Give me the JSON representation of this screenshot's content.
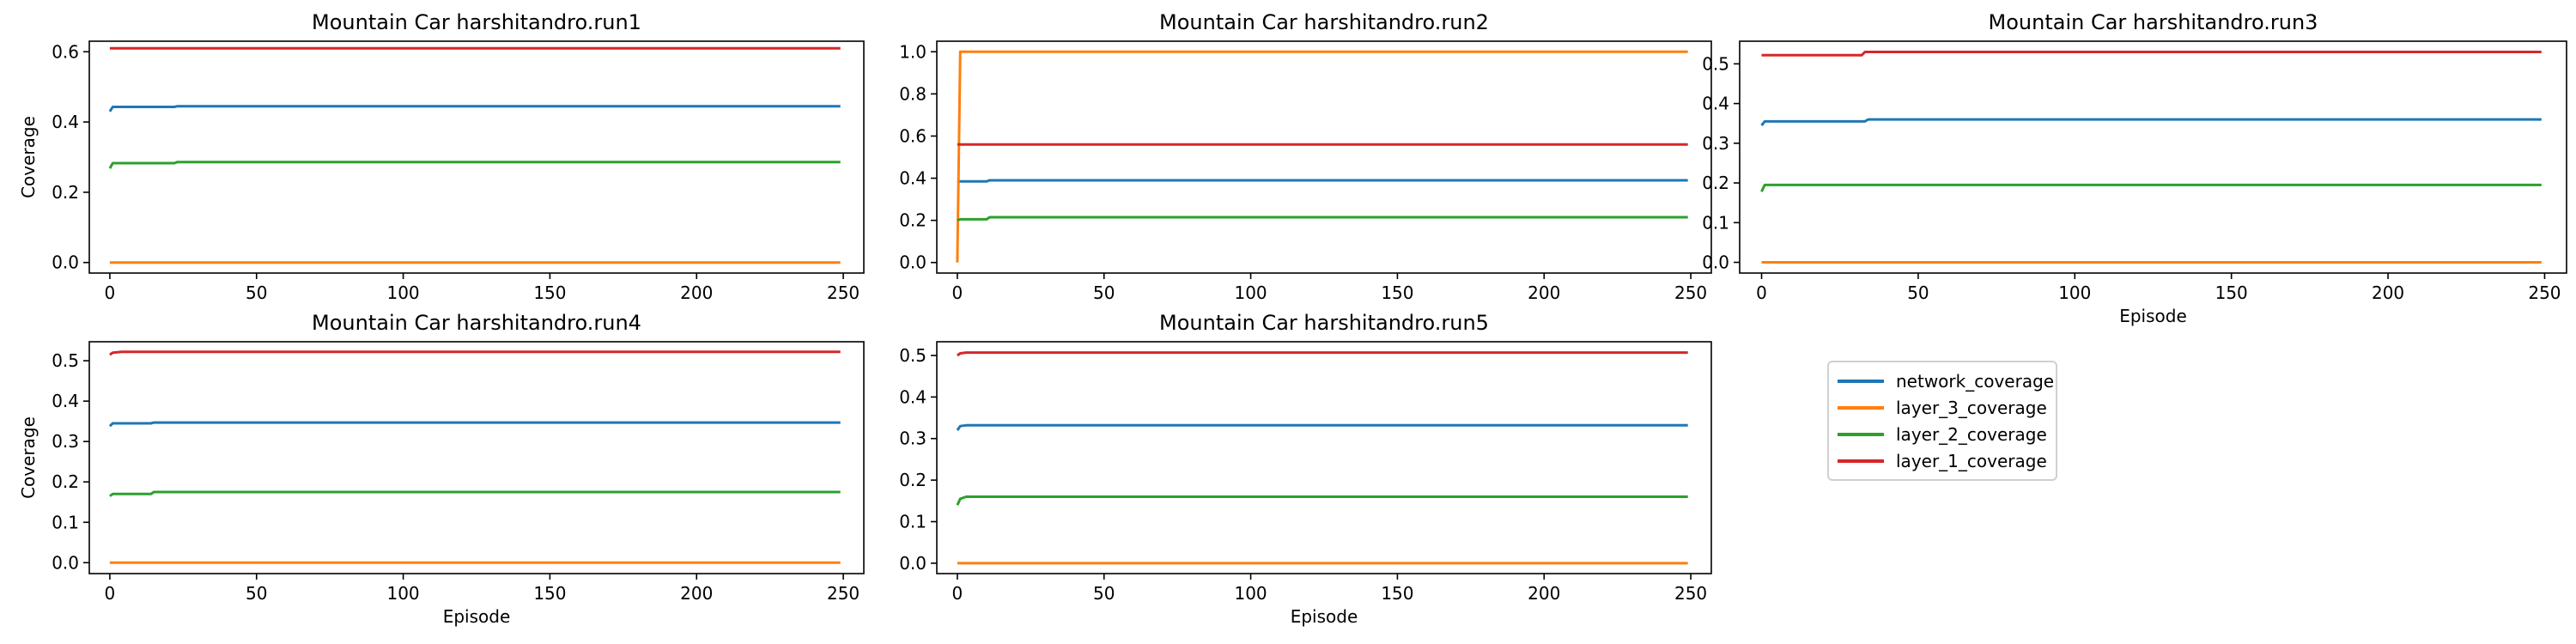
{
  "chart_data": [
    {
      "type": "line",
      "title": "Mountain Car harshitandro.run1",
      "xlabel": "",
      "ylabel": "Coverage",
      "xlim": [
        -7,
        257
      ],
      "ylim": [
        -0.03,
        0.63
      ],
      "xticks": [
        0,
        50,
        100,
        150,
        200,
        250
      ],
      "yticks": [
        0.0,
        0.2,
        0.4,
        0.6
      ],
      "ytick_labels": [
        "0.0",
        "0.2",
        "0.4",
        "0.6"
      ],
      "series": [
        {
          "name": "network_coverage",
          "color": "#1f77b4",
          "x": [
            0,
            1,
            22,
            23,
            249
          ],
          "y": [
            0.43,
            0.443,
            0.443,
            0.445,
            0.445
          ]
        },
        {
          "name": "layer_3_coverage",
          "color": "#ff7f0e",
          "x": [
            0,
            249
          ],
          "y": [
            0.0,
            0.0
          ]
        },
        {
          "name": "layer_2_coverage",
          "color": "#2ca02c",
          "x": [
            0,
            1,
            22,
            23,
            249
          ],
          "y": [
            0.268,
            0.283,
            0.283,
            0.286,
            0.286
          ]
        },
        {
          "name": "layer_1_coverage",
          "color": "#d62728",
          "x": [
            0,
            249
          ],
          "y": [
            0.61,
            0.61
          ]
        }
      ]
    },
    {
      "type": "line",
      "title": "Mountain Car harshitandro.run2",
      "xlabel": "",
      "ylabel": "",
      "xlim": [
        -7,
        257
      ],
      "ylim": [
        -0.05,
        1.05
      ],
      "xticks": [
        0,
        50,
        100,
        150,
        200,
        250
      ],
      "yticks": [
        0.0,
        0.2,
        0.4,
        0.6,
        0.8,
        1.0
      ],
      "ytick_labels": [
        "0.0",
        "0.2",
        "0.4",
        "0.6",
        "0.8",
        "1.0"
      ],
      "series": [
        {
          "name": "network_coverage",
          "color": "#1f77b4",
          "x": [
            0,
            1,
            10,
            11,
            249
          ],
          "y": [
            0.38,
            0.385,
            0.385,
            0.39,
            0.39
          ]
        },
        {
          "name": "layer_3_coverage",
          "color": "#ff7f0e",
          "x": [
            0,
            1,
            249
          ],
          "y": [
            0.0,
            1.0,
            1.0
          ]
        },
        {
          "name": "layer_2_coverage",
          "color": "#2ca02c",
          "x": [
            0,
            1,
            10,
            11,
            249
          ],
          "y": [
            0.2,
            0.205,
            0.205,
            0.215,
            0.215
          ]
        },
        {
          "name": "layer_1_coverage",
          "color": "#d62728",
          "x": [
            0,
            249
          ],
          "y": [
            0.56,
            0.56
          ]
        }
      ]
    },
    {
      "type": "line",
      "title": "Mountain Car harshitandro.run3",
      "xlabel": "Episode",
      "ylabel": "",
      "xlim": [
        -7,
        257
      ],
      "ylim": [
        -0.027,
        0.557
      ],
      "xticks": [
        0,
        50,
        100,
        150,
        200,
        250
      ],
      "yticks": [
        0.0,
        0.1,
        0.2,
        0.3,
        0.4,
        0.5
      ],
      "ytick_labels": [
        "0.0",
        "0.1",
        "0.2",
        "0.3",
        "0.4",
        "0.5"
      ],
      "series": [
        {
          "name": "network_coverage",
          "color": "#1f77b4",
          "x": [
            0,
            1,
            33,
            34,
            249
          ],
          "y": [
            0.345,
            0.355,
            0.355,
            0.36,
            0.36
          ]
        },
        {
          "name": "layer_3_coverage",
          "color": "#ff7f0e",
          "x": [
            0,
            249
          ],
          "y": [
            0.0,
            0.0
          ]
        },
        {
          "name": "layer_2_coverage",
          "color": "#2ca02c",
          "x": [
            0,
            1,
            249
          ],
          "y": [
            0.178,
            0.195,
            0.195
          ]
        },
        {
          "name": "layer_1_coverage",
          "color": "#d62728",
          "x": [
            0,
            32,
            33,
            249
          ],
          "y": [
            0.522,
            0.522,
            0.53,
            0.53
          ]
        }
      ]
    },
    {
      "type": "line",
      "title": "Mountain Car harshitandro.run4",
      "xlabel": "Episode",
      "ylabel": "Coverage",
      "xlim": [
        -7,
        257
      ],
      "ylim": [
        -0.027,
        0.547
      ],
      "xticks": [
        0,
        50,
        100,
        150,
        200,
        250
      ],
      "yticks": [
        0.0,
        0.1,
        0.2,
        0.3,
        0.4,
        0.5
      ],
      "ytick_labels": [
        "0.0",
        "0.1",
        "0.2",
        "0.3",
        "0.4",
        "0.5"
      ],
      "series": [
        {
          "name": "network_coverage",
          "color": "#1f77b4",
          "x": [
            0,
            1,
            14,
            15,
            249
          ],
          "y": [
            0.338,
            0.345,
            0.345,
            0.347,
            0.347
          ]
        },
        {
          "name": "layer_3_coverage",
          "color": "#ff7f0e",
          "x": [
            0,
            249
          ],
          "y": [
            0.0,
            0.0
          ]
        },
        {
          "name": "layer_2_coverage",
          "color": "#2ca02c",
          "x": [
            0,
            1,
            14,
            15,
            249
          ],
          "y": [
            0.165,
            0.17,
            0.17,
            0.175,
            0.175
          ]
        },
        {
          "name": "layer_1_coverage",
          "color": "#d62728",
          "x": [
            0,
            1,
            4,
            249
          ],
          "y": [
            0.515,
            0.52,
            0.522,
            0.522
          ]
        }
      ]
    },
    {
      "type": "line",
      "title": "Mountain Car harshitandro.run5",
      "xlabel": "Episode",
      "ylabel": "",
      "xlim": [
        -7,
        257
      ],
      "ylim": [
        -0.025,
        0.533
      ],
      "xticks": [
        0,
        50,
        100,
        150,
        200,
        250
      ],
      "yticks": [
        0.0,
        0.1,
        0.2,
        0.3,
        0.4,
        0.5
      ],
      "ytick_labels": [
        "0.0",
        "0.1",
        "0.2",
        "0.3",
        "0.4",
        "0.5"
      ],
      "series": [
        {
          "name": "network_coverage",
          "color": "#1f77b4",
          "x": [
            0,
            1,
            3,
            249
          ],
          "y": [
            0.32,
            0.33,
            0.332,
            0.332
          ]
        },
        {
          "name": "layer_3_coverage",
          "color": "#ff7f0e",
          "x": [
            0,
            249
          ],
          "y": [
            0.0,
            0.0
          ]
        },
        {
          "name": "layer_2_coverage",
          "color": "#2ca02c",
          "x": [
            0,
            1,
            3,
            249
          ],
          "y": [
            0.14,
            0.155,
            0.16,
            0.16
          ]
        },
        {
          "name": "layer_1_coverage",
          "color": "#d62728",
          "x": [
            0,
            1,
            3,
            249
          ],
          "y": [
            0.5,
            0.505,
            0.507,
            0.507
          ]
        }
      ]
    }
  ],
  "legend": {
    "entries": [
      {
        "label": "network_coverage",
        "color": "#1f77b4"
      },
      {
        "label": "layer_3_coverage",
        "color": "#ff7f0e"
      },
      {
        "label": "layer_2_coverage",
        "color": "#2ca02c"
      },
      {
        "label": "layer_1_coverage",
        "color": "#d62728"
      }
    ]
  }
}
